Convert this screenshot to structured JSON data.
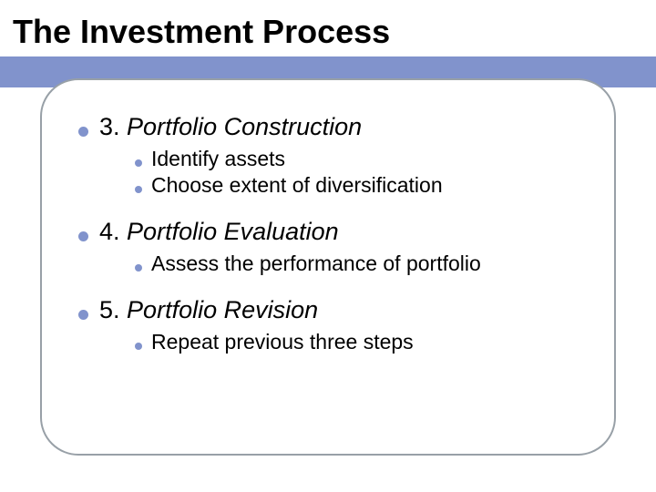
{
  "slide": {
    "title": "The Investment Process",
    "accent_color": "#8193cc",
    "border_color": "#98a0a7",
    "background_color": "#ffffff",
    "title_fontsize": 36,
    "l1_fontsize": 27,
    "l2_fontsize": 23,
    "items": [
      {
        "number": "3.",
        "title": "Portfolio Construction",
        "sub": [
          "Identify assets",
          "Choose extent of diversification"
        ]
      },
      {
        "number": "4.",
        "title": "Portfolio Evaluation",
        "sub": [
          "Assess the performance of portfolio"
        ]
      },
      {
        "number": "5.",
        "title": "Portfolio Revision",
        "sub": [
          "Repeat previous three steps"
        ]
      }
    ]
  }
}
